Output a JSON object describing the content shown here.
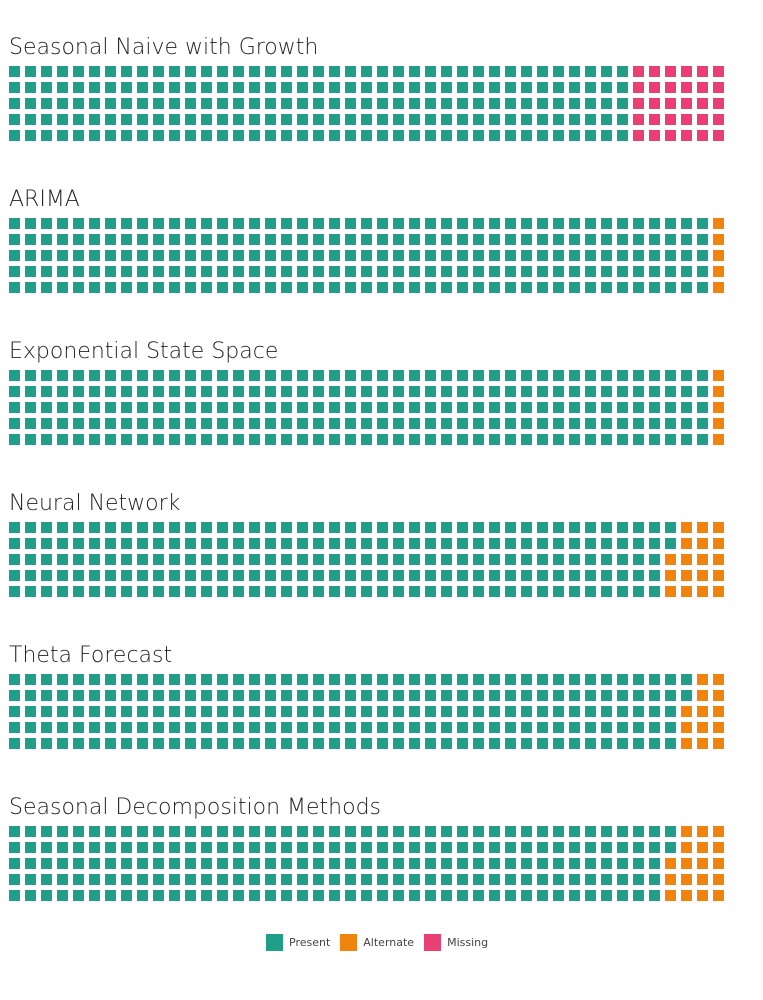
{
  "chart_data": {
    "type": "waffle",
    "rows": 5,
    "columns": 45,
    "legend": {
      "placement": "bottom-center",
      "items": [
        {
          "name": "Present",
          "color": "#1f9e89"
        },
        {
          "name": "Alternate",
          "color": "#f0840c"
        },
        {
          "name": "Missing",
          "color": "#ea3f73"
        }
      ]
    },
    "charts": [
      {
        "title": "Seasonal Naive with Growth",
        "counts": {
          "Present": 195,
          "Alternate": 0,
          "Missing": 30
        }
      },
      {
        "title": "ARIMA",
        "counts": {
          "Present": 220,
          "Alternate": 5,
          "Missing": 0
        }
      },
      {
        "title": "Exponential State Space",
        "counts": {
          "Present": 220,
          "Alternate": 5,
          "Missing": 0
        }
      },
      {
        "title": "Neural Network",
        "counts": {
          "Present": 207,
          "Alternate": 18,
          "Missing": 0
        }
      },
      {
        "title": "Theta Forecast",
        "counts": {
          "Present": 212,
          "Alternate": 13,
          "Missing": 0
        }
      },
      {
        "title": "Seasonal Decomposition Methods",
        "counts": {
          "Present": 207,
          "Alternate": 18,
          "Missing": 0
        }
      }
    ]
  }
}
